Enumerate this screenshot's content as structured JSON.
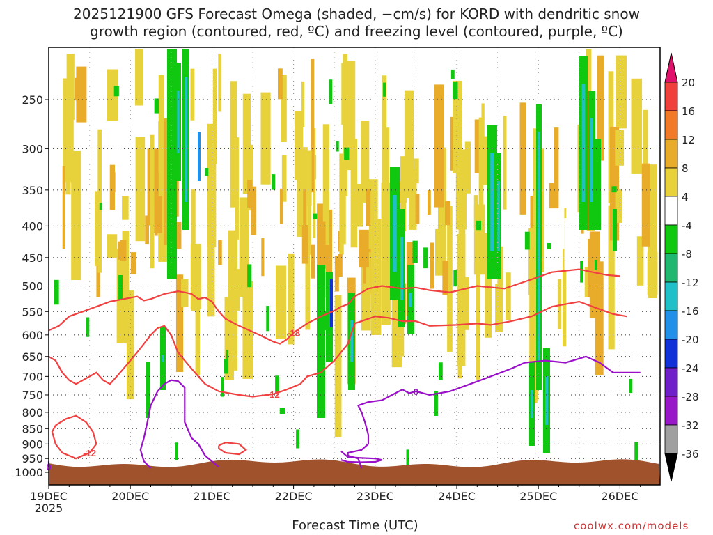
{
  "title": {
    "line1": "2025121900 GFS Forecast Omega (shaded, −cm/s) for KORD with dendritic snow",
    "line2": "growth region (contoured, red, ºC) and freezing level (contoured, purple, ºC)"
  },
  "credit": "coolwx.com/models",
  "chart_data": {
    "type": "heatmap",
    "xlabel": "Forecast Time (UTC)",
    "ylabel": "",
    "x_ticks": [
      "19DEC\n2025",
      "20DEC",
      "21DEC",
      "22DEC",
      "23DEC",
      "24DEC",
      "25DEC",
      "26DEC"
    ],
    "x_range_hours": [
      0,
      180
    ],
    "y_ticks": [
      250,
      300,
      350,
      400,
      450,
      500,
      550,
      600,
      650,
      700,
      750,
      800,
      850,
      900,
      950,
      1000
    ],
    "y_range_hPa": [
      200,
      1020
    ],
    "colorbar": {
      "levels": [
        20,
        16,
        12,
        8,
        4,
        -4,
        -8,
        -12,
        -16,
        -20,
        -24,
        -28,
        -32,
        -36
      ],
      "colors": [
        "#e0106b",
        "#f0403c",
        "#f07a28",
        "#e8ab2a",
        "#e8d23c",
        "#ffffff",
        "#10c810",
        "#20b870",
        "#20c0c8",
        "#2090e8",
        "#1030d8",
        "#7020c8",
        "#9818c8",
        "#a0a0a0",
        "#000000"
      ]
    },
    "contours": [
      {
        "label": "-18",
        "color": "#f04040",
        "points": [
          [
            0,
            590
          ],
          [
            3,
            580
          ],
          [
            6,
            560
          ],
          [
            10,
            550
          ],
          [
            14,
            540
          ],
          [
            18,
            530
          ],
          [
            22,
            525
          ],
          [
            26,
            520
          ],
          [
            28,
            528
          ],
          [
            30,
            525
          ],
          [
            34,
            515
          ],
          [
            38,
            510
          ],
          [
            40,
            512
          ],
          [
            42,
            515
          ],
          [
            44,
            525
          ],
          [
            46,
            522
          ],
          [
            48,
            530
          ],
          [
            50,
            550
          ],
          [
            52,
            565
          ],
          [
            56,
            580
          ],
          [
            62,
            600
          ],
          [
            66,
            615
          ],
          [
            68,
            620
          ],
          [
            70,
            610
          ],
          [
            72,
            595
          ],
          [
            76,
            575
          ],
          [
            80,
            560
          ],
          [
            84,
            548
          ],
          [
            86,
            540
          ],
          [
            88,
            535
          ],
          [
            90,
            520
          ],
          [
            94,
            505
          ],
          [
            98,
            500
          ],
          [
            104,
            505
          ],
          [
            108,
            503
          ],
          [
            112,
            508
          ],
          [
            118,
            512
          ],
          [
            126,
            500
          ],
          [
            134,
            505
          ],
          [
            142,
            488
          ],
          [
            148,
            475
          ],
          [
            156,
            470
          ],
          [
            160,
            475
          ],
          [
            164,
            480
          ],
          [
            168,
            482
          ]
        ]
      },
      {
        "label": "-12",
        "color": "#f04040",
        "points": [
          [
            0,
            650
          ],
          [
            2,
            660
          ],
          [
            4,
            690
          ],
          [
            6,
            710
          ],
          [
            8,
            720
          ],
          [
            12,
            700
          ],
          [
            14,
            690
          ],
          [
            16,
            710
          ],
          [
            18,
            720
          ],
          [
            20,
            700
          ],
          [
            22,
            680
          ],
          [
            24,
            660
          ],
          [
            26,
            640
          ],
          [
            28,
            620
          ],
          [
            30,
            600
          ],
          [
            32,
            585
          ],
          [
            34,
            580
          ],
          [
            36,
            600
          ],
          [
            38,
            640
          ],
          [
            40,
            660
          ],
          [
            42,
            680
          ],
          [
            44,
            700
          ],
          [
            46,
            720
          ],
          [
            50,
            740
          ],
          [
            56,
            750
          ],
          [
            60,
            755
          ],
          [
            66,
            748
          ],
          [
            70,
            735
          ],
          [
            74,
            720
          ],
          [
            76,
            700
          ],
          [
            80,
            690
          ],
          [
            84,
            660
          ],
          [
            88,
            620
          ],
          [
            90,
            575
          ],
          [
            96,
            560
          ],
          [
            100,
            563
          ],
          [
            104,
            570
          ],
          [
            108,
            570
          ],
          [
            112,
            580
          ],
          [
            120,
            578
          ],
          [
            126,
            575
          ],
          [
            130,
            578
          ],
          [
            136,
            570
          ],
          [
            142,
            560
          ],
          [
            148,
            540
          ],
          [
            156,
            530
          ],
          [
            162,
            545
          ],
          [
            166,
            555
          ],
          [
            170,
            560
          ]
        ]
      },
      {
        "label": "-12",
        "color": "#f04040",
        "points": [
          [
            2,
            840
          ],
          [
            5,
            820
          ],
          [
            8,
            810
          ],
          [
            11,
            830
          ],
          [
            13,
            860
          ],
          [
            14,
            900
          ],
          [
            12,
            930
          ],
          [
            8,
            950
          ],
          [
            4,
            930
          ],
          [
            2,
            900
          ],
          [
            1,
            860
          ],
          [
            2,
            840
          ]
        ]
      },
      {
        "label": "",
        "color": "#f04040",
        "points": [
          [
            50,
            905
          ],
          [
            52,
            895
          ],
          [
            56,
            900
          ],
          [
            58,
            920
          ],
          [
            56,
            935
          ],
          [
            52,
            930
          ],
          [
            50,
            915
          ],
          [
            50,
            905
          ]
        ]
      },
      {
        "label": "0",
        "color": "#9a10c8",
        "points": [
          [
            0,
            960
          ],
          [
            0,
            980
          ]
        ]
      },
      {
        "label": "",
        "color": "#9a10c8",
        "points": [
          [
            30,
            985
          ],
          [
            28,
            960
          ],
          [
            27,
            920
          ],
          [
            28,
            880
          ],
          [
            29,
            830
          ],
          [
            30,
            780
          ],
          [
            32,
            740
          ],
          [
            34,
            720
          ],
          [
            36,
            710
          ],
          [
            38,
            712
          ],
          [
            40,
            730
          ],
          [
            40,
            780
          ],
          [
            40,
            830
          ],
          [
            42,
            880
          ],
          [
            44,
            900
          ],
          [
            46,
            940
          ],
          [
            48,
            960
          ],
          [
            50,
            980
          ]
        ]
      },
      {
        "label": "0",
        "color": "#9a10c8",
        "points": [
          [
            92,
            985
          ],
          [
            91,
            950
          ],
          [
            88,
            940
          ],
          [
            88,
            930
          ],
          [
            92,
            920
          ],
          [
            94,
            900
          ],
          [
            94,
            870
          ],
          [
            93,
            830
          ],
          [
            92,
            800
          ],
          [
            91,
            780
          ],
          [
            94,
            770
          ],
          [
            98,
            765
          ],
          [
            100,
            755
          ],
          [
            102,
            745
          ],
          [
            104,
            735
          ],
          [
            106,
            745
          ],
          [
            108,
            740
          ],
          [
            112,
            750
          ],
          [
            118,
            740
          ],
          [
            124,
            720
          ],
          [
            130,
            700
          ],
          [
            136,
            680
          ],
          [
            140,
            665
          ],
          [
            146,
            660
          ],
          [
            152,
            665
          ],
          [
            158,
            650
          ],
          [
            162,
            665
          ],
          [
            166,
            690
          ],
          [
            170,
            690
          ],
          [
            174,
            690
          ]
        ]
      },
      {
        "label": "",
        "color": "#9a10c8",
        "points": [
          [
            86,
            925
          ],
          [
            88,
            945
          ],
          [
            92,
            948
          ],
          [
            96,
            950
          ],
          [
            98,
            955
          ],
          [
            96,
            962
          ],
          [
            92,
            963
          ],
          [
            88,
            962
          ],
          [
            86,
            955
          ]
        ]
      }
    ]
  }
}
